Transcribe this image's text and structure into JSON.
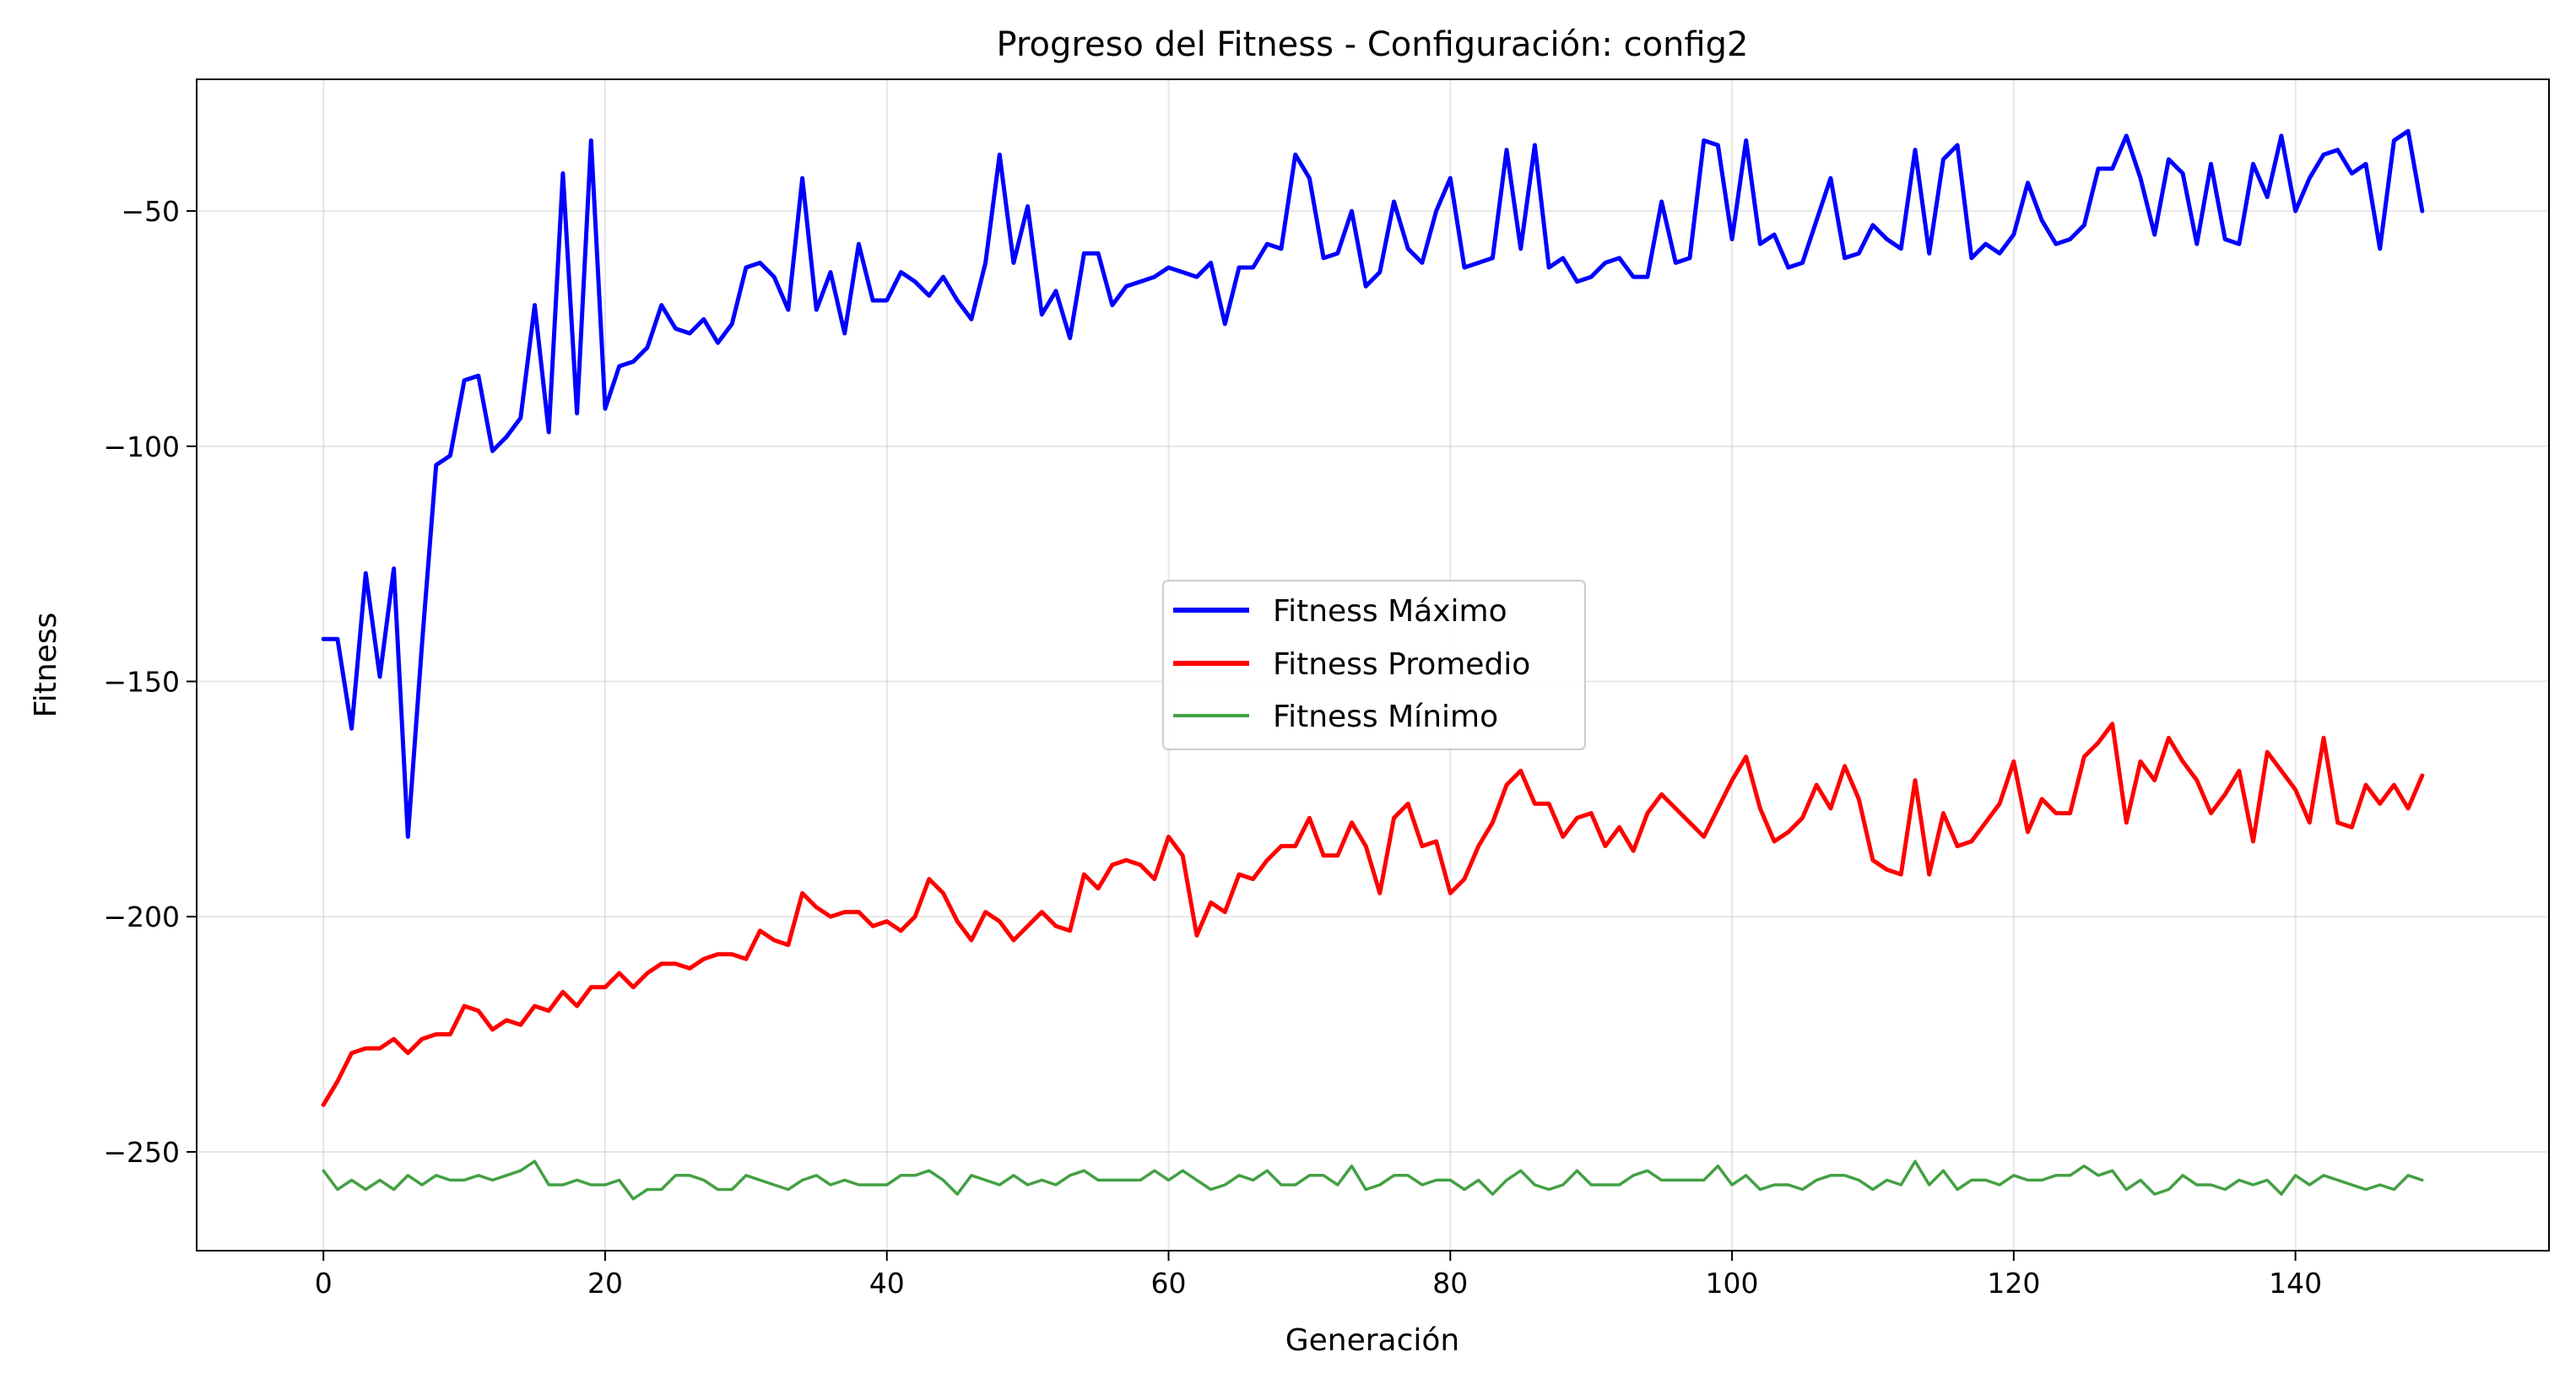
{
  "chart_data": {
    "type": "line",
    "title": "Progreso del Fitness - Configuración: config2",
    "xlabel": "Generación",
    "ylabel": "Fitness",
    "xlim": [
      -9,
      158
    ],
    "ylim": [
      -271,
      -22
    ],
    "xticks": [
      0,
      20,
      40,
      60,
      80,
      100,
      120,
      140
    ],
    "yticks": [
      -50,
      -100,
      -150,
      -200,
      -250
    ],
    "ytick_labels": [
      "−50",
      "−100",
      "−150",
      "−200",
      "−250"
    ],
    "grid": true,
    "legend_position": "center",
    "series": [
      {
        "name": "Fitness Máximo",
        "color": "#0000ff",
        "values": [
          -141,
          -141,
          -160,
          -127,
          -149,
          -126,
          -183,
          -142,
          -104,
          -102,
          -86,
          -85,
          -101,
          -98,
          -94,
          -70,
          -97,
          -42,
          -93,
          -35,
          -92,
          -83,
          -82,
          -79,
          -70,
          -75,
          -76,
          -73,
          -78,
          -74,
          -62,
          -61,
          -64,
          -71,
          -43,
          -71,
          -63,
          -76,
          -57,
          -69,
          -69,
          -63,
          -65,
          -68,
          -64,
          -69,
          -73,
          -61,
          -38,
          -61,
          -49,
          -72,
          -67,
          -77,
          -59,
          -59,
          -70,
          -66,
          -65,
          -64,
          -62,
          -63,
          -64,
          -61,
          -74,
          -62,
          -62,
          -57,
          -58,
          -38,
          -43,
          -60,
          -59,
          -50,
          -66,
          -63,
          -48,
          -58,
          -61,
          -50,
          -43,
          -62,
          -61,
          -60,
          -37,
          -58,
          -36,
          -62,
          -60,
          -65,
          -64,
          -61,
          -60,
          -64,
          -64,
          -48,
          -61,
          -60,
          -35,
          -36,
          -56,
          -35,
          -57,
          -55,
          -62,
          -61,
          -52,
          -43,
          -60,
          -59,
          -53,
          -56,
          -58,
          -37,
          -59,
          -39,
          -36,
          -60,
          -57,
          -59,
          -55,
          -44,
          -52,
          -57,
          -56,
          -53,
          -41,
          -41,
          -34,
          -43,
          -55,
          -39,
          -42,
          -57,
          -40,
          -56,
          -57,
          -40,
          -47,
          -34,
          -50,
          -43,
          -38,
          -37,
          -42,
          -40,
          -58,
          -35,
          -33,
          -50
        ]
      },
      {
        "name": "Fitness Promedio",
        "color": "#ff0000",
        "values": [
          -240,
          -235,
          -229,
          -228,
          -228,
          -226,
          -229,
          -226,
          -225,
          -225,
          -219,
          -220,
          -224,
          -222,
          -223,
          -219,
          -220,
          -216,
          -219,
          -215,
          -215,
          -212,
          -215,
          -212,
          -210,
          -210,
          -211,
          -209,
          -208,
          -208,
          -209,
          -203,
          -205,
          -206,
          -195,
          -198,
          -200,
          -199,
          -199,
          -202,
          -201,
          -203,
          -200,
          -192,
          -195,
          -201,
          -205,
          -199,
          -201,
          -205,
          -202,
          -199,
          -202,
          -203,
          -191,
          -194,
          -189,
          -188,
          -189,
          -192,
          -183,
          -187,
          -204,
          -197,
          -199,
          -191,
          -192,
          -188,
          -185,
          -185,
          -179,
          -187,
          -187,
          -180,
          -185,
          -195,
          -179,
          -176,
          -185,
          -184,
          -195,
          -192,
          -185,
          -180,
          -172,
          -169,
          -176,
          -176,
          -183,
          -179,
          -178,
          -185,
          -181,
          -186,
          -178,
          -174,
          -177,
          -180,
          -183,
          -177,
          -171,
          -166,
          -177,
          -184,
          -182,
          -179,
          -172,
          -177,
          -168,
          -175,
          -188,
          -190,
          -191,
          -171,
          -191,
          -178,
          -185,
          -184,
          -180,
          -176,
          -167,
          -182,
          -175,
          -178,
          -178,
          -166,
          -163,
          -159,
          -180,
          -167,
          -171,
          -162,
          -167,
          -171,
          -178,
          -174,
          -169,
          -184,
          -165,
          -169,
          -173,
          -180,
          -162,
          -180,
          -181,
          -172,
          -176,
          -172,
          -177,
          -170
        ]
      },
      {
        "name": "Fitness Mínimo",
        "color": "#43a043",
        "values": [
          -254,
          -258,
          -256,
          -258,
          -256,
          -258,
          -255,
          -257,
          -255,
          -256,
          -256,
          -255,
          -256,
          -255,
          -254,
          -252,
          -257,
          -257,
          -256,
          -257,
          -257,
          -256,
          -260,
          -258,
          -258,
          -255,
          -255,
          -256,
          -258,
          -258,
          -255,
          -256,
          -257,
          -258,
          -256,
          -255,
          -257,
          -256,
          -257,
          -257,
          -257,
          -255,
          -255,
          -254,
          -256,
          -259,
          -255,
          -256,
          -257,
          -255,
          -257,
          -256,
          -257,
          -255,
          -254,
          -256,
          -256,
          -256,
          -256,
          -254,
          -256,
          -254,
          -256,
          -258,
          -257,
          -255,
          -256,
          -254,
          -257,
          -257,
          -255,
          -255,
          -257,
          -253,
          -258,
          -257,
          -255,
          -255,
          -257,
          -256,
          -256,
          -258,
          -256,
          -259,
          -256,
          -254,
          -257,
          -258,
          -257,
          -254,
          -257,
          -257,
          -257,
          -255,
          -254,
          -256,
          -256,
          -256,
          -256,
          -253,
          -257,
          -255,
          -258,
          -257,
          -257,
          -258,
          -256,
          -255,
          -255,
          -256,
          -258,
          -256,
          -257,
          -252,
          -257,
          -254,
          -258,
          -256,
          -256,
          -257,
          -255,
          -256,
          -256,
          -255,
          -255,
          -253,
          -255,
          -254,
          -258,
          -256,
          -259,
          -258,
          -255,
          -257,
          -257,
          -258,
          -256,
          -257,
          -256,
          -259,
          -255,
          -257,
          -255,
          -256,
          -257,
          -258,
          -257,
          -258,
          -255,
          -256
        ]
      }
    ]
  }
}
